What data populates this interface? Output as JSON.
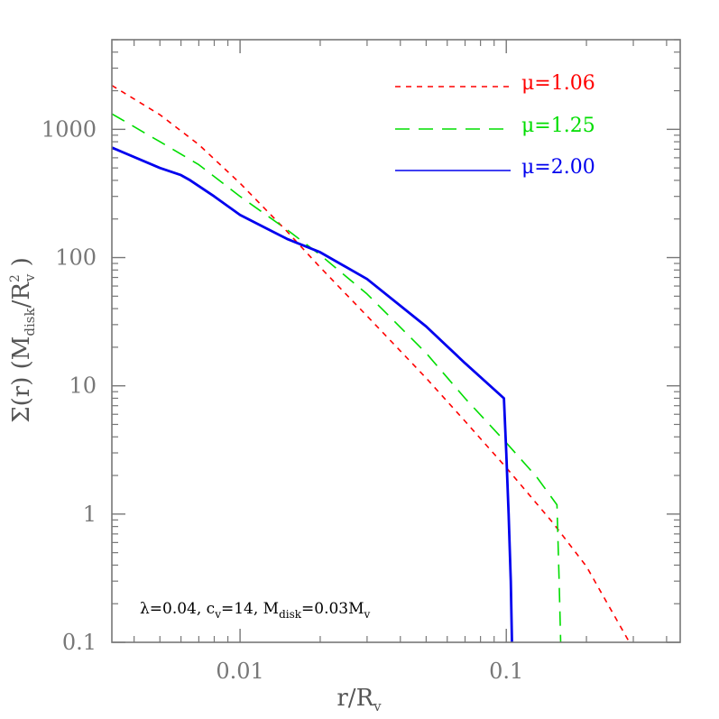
{
  "chart_data": {
    "type": "line",
    "x_scale": "log",
    "y_scale": "log",
    "xlim": [
      0.0033,
      0.45
    ],
    "ylim": [
      0.1,
      5000
    ],
    "grid": false,
    "legend_position": "top-right",
    "xlabel": {
      "main": "r/R",
      "sub": "v"
    },
    "ylabel": {
      "prefix": "Σ(r) (M",
      "sub1": "disk",
      "mid": "/R",
      "sup": "2",
      "sub2": "v",
      "suffix": " )"
    },
    "x_ticks": [
      {
        "value": 0.01,
        "label": "0.01"
      },
      {
        "value": 0.1,
        "label": "0.1"
      }
    ],
    "y_ticks": [
      {
        "value": 0.1,
        "label": "0.1"
      },
      {
        "value": 1,
        "label": "1"
      },
      {
        "value": 10,
        "label": "10"
      },
      {
        "value": 100,
        "label": "100"
      },
      {
        "value": 1000,
        "label": "1000"
      }
    ],
    "annotation": {
      "p1": "λ=0.04,  c",
      "s1": "v",
      "p2": "=14,  M",
      "s2": "disk",
      "p3": "=0.03M",
      "s3": "v"
    },
    "series": [
      {
        "name": "μ=1.06",
        "color": "#ff0000",
        "dash": "6,6",
        "width": 1.6,
        "x": [
          0.0033,
          0.005,
          0.007,
          0.01,
          0.015,
          0.02,
          0.03,
          0.05,
          0.07,
          0.1,
          0.15,
          0.2,
          0.29
        ],
        "y": [
          2200,
          1300,
          760,
          380,
          160,
          84,
          35,
          11.5,
          5.3,
          2.3,
          0.85,
          0.39,
          0.1
        ]
      },
      {
        "name": "μ=1.25",
        "color": "#00dd00",
        "dash": "16,10",
        "width": 1.6,
        "x": [
          0.0033,
          0.005,
          0.007,
          0.01,
          0.015,
          0.02,
          0.03,
          0.05,
          0.07,
          0.1,
          0.13,
          0.155,
          0.158,
          0.16
        ],
        "y": [
          1320,
          800,
          530,
          300,
          165,
          105,
          52,
          18,
          8.0,
          3.6,
          1.95,
          1.18,
          0.3,
          0.1
        ]
      },
      {
        "name": "μ=2.00",
        "color": "#0000ee",
        "dash": "",
        "width": 2.8,
        "x": [
          0.0033,
          0.005,
          0.006,
          0.0065,
          0.008,
          0.01,
          0.015,
          0.02,
          0.03,
          0.05,
          0.07,
          0.098,
          0.1,
          0.102,
          0.104,
          0.105
        ],
        "y": [
          720,
          500,
          440,
          400,
          300,
          215,
          140,
          110,
          68,
          29,
          15,
          8.0,
          3.0,
          1.0,
          0.3,
          0.1
        ]
      }
    ]
  }
}
